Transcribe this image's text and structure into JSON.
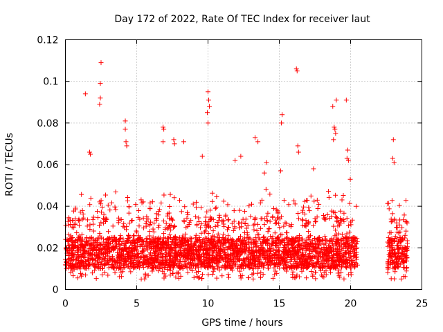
{
  "chart_data": {
    "type": "scatter",
    "title": "Day 172 of 2022, Rate Of TEC Index for receiver laut",
    "xlabel": "GPS time / hours",
    "ylabel": "ROTI / TECUs",
    "xlim": [
      0,
      25
    ],
    "ylim": [
      0,
      0.12
    ],
    "x_ticks": [
      "0",
      "5",
      "10",
      "15",
      "20",
      "25"
    ],
    "y_ticks": [
      "0",
      "0.02",
      "0.04",
      "0.06",
      "0.08",
      "0.1",
      "0.12"
    ],
    "x_tick_values": [
      0,
      5,
      10,
      15,
      20,
      25
    ],
    "y_tick_values": [
      0,
      0.02,
      0.04,
      0.06,
      0.08,
      0.1,
      0.12
    ],
    "grid": true,
    "marker": "+",
    "color": "#ff0000",
    "data_gaps_hours": [
      [
        20.5,
        22.6
      ]
    ],
    "series": [
      {
        "x": [
          2.5,
          2.45,
          2.45,
          2.4,
          1.4,
          16.2,
          16.25,
          10.0,
          10.05,
          10.1,
          9.95,
          10.0,
          19.0,
          18.75,
          19.7,
          15.2,
          15.15,
          4.2,
          4.2,
          4.25,
          4.3,
          18.85,
          18.9,
          18.95,
          18.8,
          6.85,
          6.9,
          6.85,
          7.6,
          7.65,
          1.7,
          1.75,
          9.6,
          13.3,
          13.5,
          16.3,
          16.35,
          19.8,
          19.75,
          19.85,
          23.0,
          22.95,
          23.05,
          8.3,
          11.9,
          12.3,
          14.1,
          15.1,
          17.4
        ],
        "y": [
          0.109,
          0.099,
          0.092,
          0.089,
          0.094,
          0.106,
          0.105,
          0.095,
          0.091,
          0.088,
          0.085,
          0.08,
          0.091,
          0.088,
          0.091,
          0.084,
          0.08,
          0.081,
          0.077,
          0.071,
          0.069,
          0.078,
          0.077,
          0.075,
          0.072,
          0.078,
          0.077,
          0.071,
          0.072,
          0.07,
          0.066,
          0.065,
          0.064,
          0.073,
          0.071,
          0.069,
          0.066,
          0.067,
          0.063,
          0.062,
          0.072,
          0.063,
          0.061,
          0.071,
          0.062,
          0.064,
          0.061,
          0.057,
          0.058
        ]
      }
    ],
    "dense_band": {
      "segments": [
        [
          0,
          20.5
        ],
        [
          22.6,
          24
        ]
      ],
      "typical_range": [
        0.005,
        0.035
      ],
      "core_range": [
        0.01,
        0.025
      ]
    }
  }
}
